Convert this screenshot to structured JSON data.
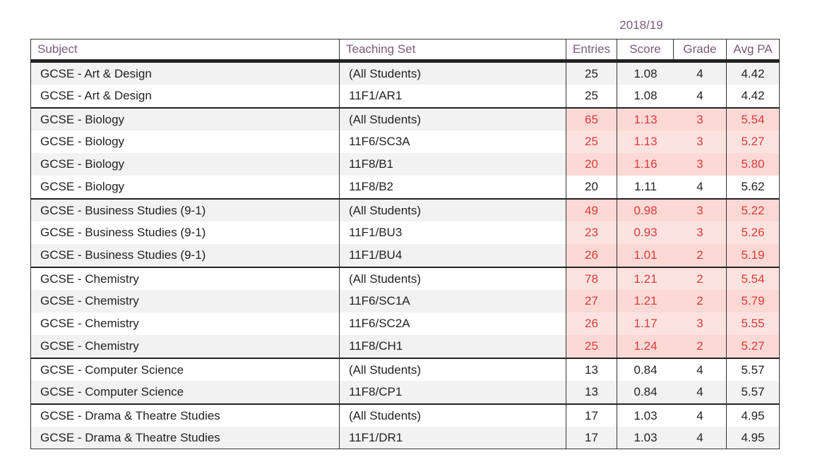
{
  "year_label": "2018/19",
  "headers": {
    "subject": "Subject",
    "teaching_set": "Teaching Set",
    "entries": "Entries",
    "score": "Score",
    "grade": "Grade",
    "avg_pa": "Avg PA"
  },
  "rows": [
    {
      "subject": "GCSE - Art & Design",
      "set": "(All Students)",
      "entries": "25",
      "score": "1.08",
      "grade": "4",
      "avg": "4.42",
      "flag": false,
      "group_start": true
    },
    {
      "subject": "GCSE - Art & Design",
      "set": "11F1/AR1",
      "entries": "25",
      "score": "1.08",
      "grade": "4",
      "avg": "4.42",
      "flag": false,
      "group_start": false
    },
    {
      "subject": "GCSE - Biology",
      "set": "(All Students)",
      "entries": "65",
      "score": "1.13",
      "grade": "3",
      "avg": "5.54",
      "flag": true,
      "group_start": true
    },
    {
      "subject": "GCSE - Biology",
      "set": "11F6/SC3A",
      "entries": "25",
      "score": "1.13",
      "grade": "3",
      "avg": "5.27",
      "flag": true,
      "group_start": false
    },
    {
      "subject": "GCSE - Biology",
      "set": "11F8/B1",
      "entries": "20",
      "score": "1.16",
      "grade": "3",
      "avg": "5.80",
      "flag": true,
      "group_start": false
    },
    {
      "subject": "GCSE - Biology",
      "set": "11F8/B2",
      "entries": "20",
      "score": "1.11",
      "grade": "4",
      "avg": "5.62",
      "flag": false,
      "group_start": false
    },
    {
      "subject": "GCSE - Business Studies (9-1)",
      "set": "(All Students)",
      "entries": "49",
      "score": "0.98",
      "grade": "3",
      "avg": "5.22",
      "flag": true,
      "group_start": true
    },
    {
      "subject": "GCSE - Business Studies (9-1)",
      "set": "11F1/BU3",
      "entries": "23",
      "score": "0.93",
      "grade": "3",
      "avg": "5.26",
      "flag": true,
      "group_start": false
    },
    {
      "subject": "GCSE - Business Studies (9-1)",
      "set": "11F1/BU4",
      "entries": "26",
      "score": "1.01",
      "grade": "2",
      "avg": "5.19",
      "flag": true,
      "group_start": false
    },
    {
      "subject": "GCSE - Chemistry",
      "set": "(All Students)",
      "entries": "78",
      "score": "1.21",
      "grade": "2",
      "avg": "5.54",
      "flag": true,
      "group_start": true
    },
    {
      "subject": "GCSE - Chemistry",
      "set": "11F6/SC1A",
      "entries": "27",
      "score": "1.21",
      "grade": "2",
      "avg": "5.79",
      "flag": true,
      "group_start": false
    },
    {
      "subject": "GCSE - Chemistry",
      "set": "11F6/SC2A",
      "entries": "26",
      "score": "1.17",
      "grade": "3",
      "avg": "5.55",
      "flag": true,
      "group_start": false
    },
    {
      "subject": "GCSE - Chemistry",
      "set": "11F8/CH1",
      "entries": "25",
      "score": "1.24",
      "grade": "2",
      "avg": "5.27",
      "flag": true,
      "group_start": false
    },
    {
      "subject": "GCSE - Computer Science",
      "set": "(All Students)",
      "entries": "13",
      "score": "0.84",
      "grade": "4",
      "avg": "5.57",
      "flag": false,
      "group_start": true
    },
    {
      "subject": "GCSE - Computer Science",
      "set": "11F8/CP1",
      "entries": "13",
      "score": "0.84",
      "grade": "4",
      "avg": "5.57",
      "flag": false,
      "group_start": false
    },
    {
      "subject": "GCSE - Drama & Theatre Studies",
      "set": "(All Students)",
      "entries": "17",
      "score": "1.03",
      "grade": "4",
      "avg": "4.95",
      "flag": false,
      "group_start": true
    },
    {
      "subject": "GCSE - Drama & Theatre Studies",
      "set": "11F1/DR1",
      "entries": "17",
      "score": "1.03",
      "grade": "4",
      "avg": "4.95",
      "flag": false,
      "group_start": false
    }
  ]
}
